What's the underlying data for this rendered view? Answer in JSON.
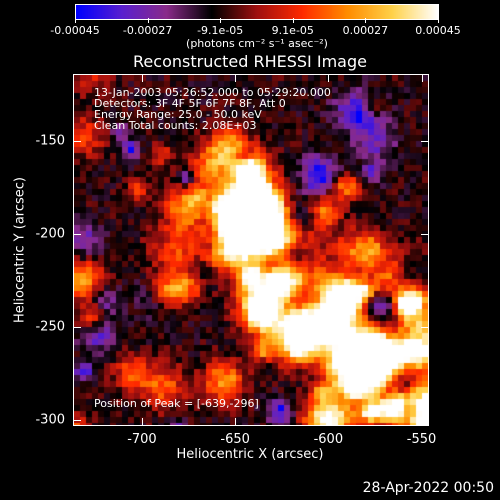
{
  "colorbar": {
    "tick_labels": [
      "-0.00045",
      "-0.00027",
      "-9.1e-05",
      "9.1e-05",
      "0.00027",
      "0.00045"
    ],
    "units": "(photons cm⁻² s⁻¹ asec⁻²)",
    "colormap": [
      "#0000ff",
      "#5a1fd0",
      "#8a2b8a",
      "#000000",
      "#a01010",
      "#ff2a00",
      "#ff8c00",
      "#ffd24a",
      "#ffffff"
    ]
  },
  "chart_data": {
    "type": "heatmap",
    "title": "Reconstructed RHESSI Image",
    "xlabel": "Heliocentric X (arcsec)",
    "ylabel": "Heliocentric Y (arcsec)",
    "xlim": [
      -737,
      -546
    ],
    "ylim": [
      -303,
      -114
    ],
    "x_ticks": [
      "-700",
      "-650",
      "-600",
      "-550"
    ],
    "x_tick_values": [
      -700,
      -650,
      -600,
      -550
    ],
    "y_ticks": [
      "-150",
      "-200",
      "-250",
      "-300"
    ],
    "y_tick_values": [
      -150,
      -200,
      -250,
      -300
    ],
    "value_range": [
      -0.00045,
      0.00045
    ],
    "annotations": {
      "time": "13-Jan-2003 05:26:52.000 to 05:29:20.000",
      "detectors": "Detectors: 3F 4F 5F 6F 7F 8F, Att 0",
      "energy": "Energy Range: 25.0 - 50.0 keV",
      "clean": "Clean    Total counts: 2.08E+03",
      "peak": "Position of Peak = [-639,-296]"
    },
    "peak_position": [
      -639,
      -296
    ]
  },
  "footer": {
    "date": "28-Apr-2022 00:50"
  }
}
